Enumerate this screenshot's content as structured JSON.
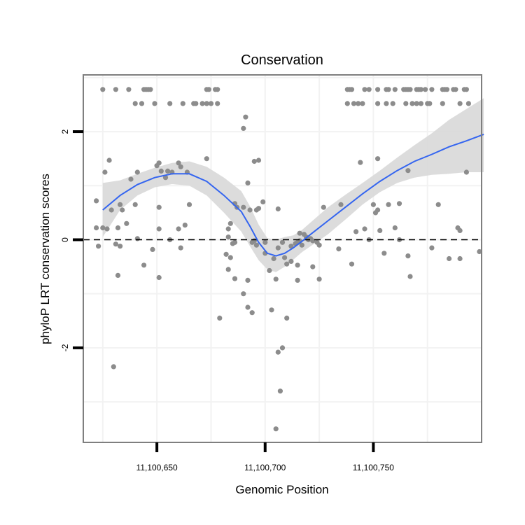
{
  "chart_data": {
    "type": "scatter",
    "title": "Conservation",
    "xlabel": "Genomic Position",
    "ylabel": "phyloP LRT conservation scores",
    "xlim": [
      11100616,
      11100800
    ],
    "ylim": [
      -3.75,
      3.05
    ],
    "x_ticks": [
      {
        "value": 11100650,
        "label": "11,100,650"
      },
      {
        "value": 11100700,
        "label": "11,100,700"
      },
      {
        "value": 11100750,
        "label": "11,100,750"
      }
    ],
    "y_ticks": [
      {
        "value": 2,
        "label": "2"
      },
      {
        "value": 0,
        "label": "0"
      },
      {
        "value": -2,
        "label": "-2"
      }
    ],
    "reference_line": {
      "y": 0,
      "style": "dashed"
    },
    "points": [
      [
        11100625,
        2.78
      ],
      [
        11100631,
        2.78
      ],
      [
        11100637,
        2.78
      ],
      [
        11100644,
        2.78
      ],
      [
        11100645,
        2.78
      ],
      [
        11100646,
        2.78
      ],
      [
        11100647,
        2.78
      ],
      [
        11100673,
        2.78
      ],
      [
        11100674,
        2.78
      ],
      [
        11100677,
        2.78
      ],
      [
        11100678,
        2.78
      ],
      [
        11100738,
        2.78
      ],
      [
        11100739,
        2.78
      ],
      [
        11100740,
        2.78
      ],
      [
        11100746,
        2.78
      ],
      [
        11100748,
        2.78
      ],
      [
        11100752,
        2.78
      ],
      [
        11100756,
        2.78
      ],
      [
        11100757,
        2.78
      ],
      [
        11100760,
        2.78
      ],
      [
        11100764,
        2.78
      ],
      [
        11100765,
        2.78
      ],
      [
        11100766,
        2.78
      ],
      [
        11100767,
        2.78
      ],
      [
        11100770,
        2.78
      ],
      [
        11100771,
        2.78
      ],
      [
        11100772,
        2.78
      ],
      [
        11100774,
        2.78
      ],
      [
        11100777,
        2.78
      ],
      [
        11100782,
        2.78
      ],
      [
        11100783,
        2.78
      ],
      [
        11100784,
        2.78
      ],
      [
        11100787,
        2.78
      ],
      [
        11100788,
        2.78
      ],
      [
        11100792,
        2.78
      ],
      [
        11100793,
        2.78
      ],
      [
        11100640,
        2.52
      ],
      [
        11100643,
        2.52
      ],
      [
        11100649,
        2.52
      ],
      [
        11100656,
        2.52
      ],
      [
        11100662,
        2.52
      ],
      [
        11100667,
        2.52
      ],
      [
        11100668,
        2.52
      ],
      [
        11100671,
        2.52
      ],
      [
        11100673,
        2.52
      ],
      [
        11100675,
        2.52
      ],
      [
        11100678,
        2.52
      ],
      [
        11100738,
        2.52
      ],
      [
        11100741,
        2.52
      ],
      [
        11100743,
        2.52
      ],
      [
        11100745,
        2.52
      ],
      [
        11100752,
        2.52
      ],
      [
        11100756,
        2.52
      ],
      [
        11100759,
        2.52
      ],
      [
        11100765,
        2.52
      ],
      [
        11100768,
        2.52
      ],
      [
        11100770,
        2.52
      ],
      [
        11100772,
        2.52
      ],
      [
        11100775,
        2.52
      ],
      [
        11100776,
        2.52
      ],
      [
        11100782,
        2.52
      ],
      [
        11100790,
        2.52
      ],
      [
        11100794,
        2.52
      ],
      [
        11100691,
        2.27
      ],
      [
        11100690,
        2.06
      ],
      [
        11100673,
        1.5
      ],
      [
        11100695,
        1.45
      ],
      [
        11100697,
        1.47
      ],
      [
        11100628,
        1.47
      ],
      [
        11100651,
        1.42
      ],
      [
        11100650,
        1.37
      ],
      [
        11100660,
        1.42
      ],
      [
        11100661,
        1.35
      ],
      [
        11100744,
        1.43
      ],
      [
        11100752,
        1.5
      ],
      [
        11100766,
        1.28
      ],
      [
        11100626,
        1.25
      ],
      [
        11100641,
        1.25
      ],
      [
        11100652,
        1.27
      ],
      [
        11100655,
        1.27
      ],
      [
        11100657,
        1.25
      ],
      [
        11100664,
        1.25
      ],
      [
        11100654,
        1.15
      ],
      [
        11100638,
        1.12
      ],
      [
        11100692,
        1.05
      ],
      [
        11100793,
        1.25
      ],
      [
        11100622,
        0.72
      ],
      [
        11100651,
        0.6
      ],
      [
        11100640,
        0.65
      ],
      [
        11100633,
        0.65
      ],
      [
        11100629,
        0.55
      ],
      [
        11100665,
        0.65
      ],
      [
        11100686,
        0.67
      ],
      [
        11100687,
        0.6
      ],
      [
        11100690,
        0.6
      ],
      [
        11100693,
        0.55
      ],
      [
        11100696,
        0.55
      ],
      [
        11100697,
        0.58
      ],
      [
        11100699,
        0.7
      ],
      [
        11100706,
        0.57
      ],
      [
        11100727,
        0.6
      ],
      [
        11100735,
        0.65
      ],
      [
        11100750,
        0.65
      ],
      [
        11100752,
        0.55
      ],
      [
        11100751,
        0.5
      ],
      [
        11100757,
        0.65
      ],
      [
        11100762,
        0.67
      ],
      [
        11100780,
        0.65
      ],
      [
        11100622,
        0.22
      ],
      [
        11100627,
        0.2
      ],
      [
        11100625,
        0.22
      ],
      [
        11100636,
        0.3
      ],
      [
        11100651,
        0.2
      ],
      [
        11100663,
        0.27
      ],
      [
        11100684,
        0.3
      ],
      [
        11100632,
        0.22
      ],
      [
        11100634,
        0.55
      ],
      [
        11100660,
        0.2
      ],
      [
        11100683,
        0.2
      ],
      [
        11100746,
        0.2
      ],
      [
        11100742,
        0.15
      ],
      [
        11100753,
        0.17
      ],
      [
        11100760,
        0.22
      ],
      [
        11100789,
        0.22
      ],
      [
        11100790,
        0.17
      ],
      [
        11100641,
        0.02
      ],
      [
        11100656,
        0
      ],
      [
        11100683,
        0.05
      ],
      [
        11100695,
        -0.02
      ],
      [
        11100716,
        0.12
      ],
      [
        11100718,
        0.1
      ],
      [
        11100719,
        0.05
      ],
      [
        11100720,
        0
      ],
      [
        11100721,
        0.02
      ],
      [
        11100722,
        -0.02
      ],
      [
        11100724,
        -0.05
      ],
      [
        11100725,
        -0.1
      ],
      [
        11100748,
        0
      ],
      [
        11100762,
        0
      ],
      [
        11100623,
        -0.12
      ],
      [
        11100633,
        -0.12
      ],
      [
        11100631,
        -0.08
      ],
      [
        11100648,
        -0.18
      ],
      [
        11100661,
        -0.15
      ],
      [
        11100685,
        -0.07
      ],
      [
        11100686,
        -0.05
      ],
      [
        11100694,
        -0.05
      ],
      [
        11100700,
        -0.05
      ],
      [
        11100708,
        -0.05
      ],
      [
        11100712,
        -0.12
      ],
      [
        11100714,
        -0.07
      ],
      [
        11100715,
        -0.05
      ],
      [
        11100716,
        -0.02
      ],
      [
        11100717,
        -0.1
      ],
      [
        11100696,
        -0.1
      ],
      [
        11100706,
        -0.15
      ],
      [
        11100734,
        -0.17
      ],
      [
        11100777,
        -0.15
      ],
      [
        11100799,
        -0.22
      ],
      [
        11100755,
        -0.25
      ],
      [
        11100766,
        -0.3
      ],
      [
        11100785,
        -0.35
      ],
      [
        11100790,
        -0.35
      ],
      [
        11100682,
        -0.27
      ],
      [
        11100684,
        -0.33
      ],
      [
        11100704,
        -0.35
      ],
      [
        11100709,
        -0.33
      ],
      [
        11100710,
        -0.45
      ],
      [
        11100712,
        -0.4
      ],
      [
        11100715,
        -0.47
      ],
      [
        11100722,
        -0.5
      ],
      [
        11100740,
        -0.45
      ],
      [
        11100644,
        -0.47
      ],
      [
        11100700,
        -0.25
      ],
      [
        11100632,
        -0.66
      ],
      [
        11100651,
        -0.7
      ],
      [
        11100683,
        -0.55
      ],
      [
        11100686,
        -0.72
      ],
      [
        11100692,
        -0.75
      ],
      [
        11100702,
        -0.57
      ],
      [
        11100705,
        -0.73
      ],
      [
        11100715,
        -0.75
      ],
      [
        11100725,
        -0.73
      ],
      [
        11100767,
        -0.68
      ],
      [
        11100690,
        -1.0
      ],
      [
        11100692,
        -1.25
      ],
      [
        11100694,
        -1.35
      ],
      [
        11100703,
        -1.3
      ],
      [
        11100710,
        -1.45
      ],
      [
        11100679,
        -1.45
      ],
      [
        11100708,
        -2.0
      ],
      [
        11100706,
        -2.08
      ],
      [
        11100630,
        -2.35
      ],
      [
        11100707,
        -2.8
      ],
      [
        11100705,
        -3.5
      ]
    ],
    "smooth": {
      "name": "loess",
      "x": [
        11100625,
        11100633,
        11100641,
        11100649,
        11100657,
        11100665,
        11100673,
        11100681,
        11100689,
        11100693,
        11100697,
        11100701,
        11100705,
        11100709,
        11100713,
        11100717,
        11100721,
        11100729,
        11100737,
        11100745,
        11100753,
        11100761,
        11100769,
        11100777,
        11100785,
        11100793,
        11100801
      ],
      "y": [
        0.55,
        0.82,
        1.02,
        1.15,
        1.22,
        1.22,
        1.08,
        0.82,
        0.52,
        0.25,
        -0.05,
        -0.25,
        -0.3,
        -0.25,
        -0.15,
        -0.03,
        0.1,
        0.35,
        0.6,
        0.85,
        1.08,
        1.28,
        1.45,
        1.58,
        1.72,
        1.83,
        1.95
      ],
      "ci_lower": [
        0.05,
        0.55,
        0.82,
        0.97,
        1.03,
        1.0,
        0.82,
        0.5,
        0.15,
        -0.12,
        -0.38,
        -0.55,
        -0.6,
        -0.5,
        -0.37,
        -0.23,
        -0.12,
        0.1,
        0.37,
        0.65,
        0.88,
        1.05,
        1.15,
        1.2,
        1.22,
        1.25,
        1.25
      ],
      "ci_upper": [
        1.05,
        1.1,
        1.22,
        1.33,
        1.42,
        1.45,
        1.35,
        1.15,
        0.9,
        0.62,
        0.28,
        0.03,
        0,
        0.05,
        0.08,
        0.18,
        0.32,
        0.6,
        0.83,
        1.05,
        1.28,
        1.52,
        1.75,
        1.97,
        2.22,
        2.42,
        2.62
      ]
    },
    "colors": {
      "points": "#8c8c8c",
      "line": "#3465f0",
      "ribbon": "#d8d8d8",
      "panel_border": "#7f7f7f",
      "grid": "#f2f2f2"
    }
  }
}
